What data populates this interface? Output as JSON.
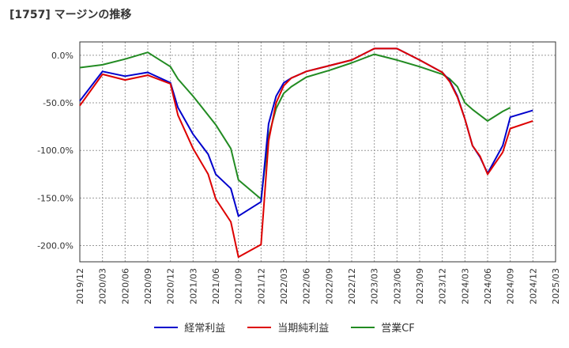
{
  "title": "[1757]  マージンの推移",
  "chart_data": {
    "type": "line",
    "title": "[1757]  マージンの推移",
    "x": [
      "2019/12",
      "2020/03",
      "2020/06",
      "2020/09",
      "2020/12",
      "2021/03",
      "2021/06",
      "2021/09",
      "2021/12",
      "2022/03",
      "2022/06",
      "2022/09",
      "2022/12",
      "2023/03",
      "2023/06",
      "2023/09",
      "2023/12",
      "2024/03",
      "2024/06",
      "2024/09",
      "2024/12",
      "2025/03"
    ],
    "ylim": [
      -217,
      14
    ],
    "yticks": [
      0,
      -50,
      -100,
      -150,
      -200
    ],
    "ytick_labels": [
      "0.0%",
      "-50.0%",
      "-100.0%",
      "-150.0%",
      "-200.0%"
    ],
    "grid": true,
    "legend_position": "bottom",
    "series": [
      {
        "name": "経常利益",
        "color": "#0000cc",
        "points": [
          [
            "2019/12",
            -48
          ],
          [
            "2020/03",
            -17
          ],
          [
            "2020/06",
            -22
          ],
          [
            "2020/09",
            -18
          ],
          [
            "2020/12",
            -29
          ],
          [
            "2021/01",
            -55
          ],
          [
            "2021/03",
            -83
          ],
          [
            "2021/05",
            -104
          ],
          [
            "2021/06",
            -125
          ],
          [
            "2021/08",
            -140
          ],
          [
            "2021/09",
            -169
          ],
          [
            "2021/12",
            -154
          ],
          [
            "2022/01",
            -72
          ],
          [
            "2022/02",
            -43
          ],
          [
            "2022/03",
            -29
          ],
          [
            "2022/04",
            -24
          ],
          [
            "2022/06",
            -17
          ],
          [
            "2022/09",
            -11
          ],
          [
            "2022/12",
            -5
          ],
          [
            "2023/03",
            7
          ],
          [
            "2023/06",
            7
          ],
          [
            "2023/09",
            -5
          ],
          [
            "2023/12",
            -18
          ],
          [
            "2024/01",
            -27
          ],
          [
            "2024/02",
            -43
          ],
          [
            "2024/03",
            -67
          ],
          [
            "2024/04",
            -95
          ],
          [
            "2024/05",
            -107
          ],
          [
            "2024/06",
            -124
          ],
          [
            "2024/08",
            -95
          ],
          [
            "2024/09",
            -65
          ],
          [
            "2024/12",
            -58
          ]
        ]
      },
      {
        "name": "当期純利益",
        "color": "#dd0000",
        "points": [
          [
            "2019/12",
            -53
          ],
          [
            "2020/03",
            -20
          ],
          [
            "2020/06",
            -26
          ],
          [
            "2020/09",
            -21
          ],
          [
            "2020/12",
            -30
          ],
          [
            "2021/01",
            -63
          ],
          [
            "2021/03",
            -98
          ],
          [
            "2021/05",
            -125
          ],
          [
            "2021/06",
            -151
          ],
          [
            "2021/08",
            -175
          ],
          [
            "2021/09",
            -212
          ],
          [
            "2021/12",
            -199
          ],
          [
            "2022/01",
            -90
          ],
          [
            "2022/02",
            -50
          ],
          [
            "2022/03",
            -32
          ],
          [
            "2022/04",
            -24
          ],
          [
            "2022/06",
            -17
          ],
          [
            "2022/09",
            -11
          ],
          [
            "2022/12",
            -5
          ],
          [
            "2023/03",
            7
          ],
          [
            "2023/06",
            7
          ],
          [
            "2023/09",
            -5
          ],
          [
            "2023/12",
            -18
          ],
          [
            "2024/01",
            -28
          ],
          [
            "2024/02",
            -44
          ],
          [
            "2024/03",
            -67
          ],
          [
            "2024/04",
            -95
          ],
          [
            "2024/05",
            -106
          ],
          [
            "2024/06",
            -125
          ],
          [
            "2024/08",
            -102
          ],
          [
            "2024/09",
            -77
          ],
          [
            "2024/12",
            -69
          ]
        ]
      },
      {
        "name": "営業CF",
        "color": "#228b22",
        "points": [
          [
            "2019/12",
            -13
          ],
          [
            "2020/03",
            -10
          ],
          [
            "2020/06",
            -4
          ],
          [
            "2020/09",
            3
          ],
          [
            "2020/10",
            -2
          ],
          [
            "2020/12",
            -12
          ],
          [
            "2021/01",
            -25
          ],
          [
            "2021/03",
            -43
          ],
          [
            "2021/04",
            -53
          ],
          [
            "2021/06",
            -73
          ],
          [
            "2021/08",
            -98
          ],
          [
            "2021/09",
            -131
          ],
          [
            "2021/12",
            -151
          ],
          [
            "2022/01",
            -85
          ],
          [
            "2022/02",
            -56
          ],
          [
            "2022/03",
            -40
          ],
          [
            "2022/04",
            -33
          ],
          [
            "2022/06",
            -23
          ],
          [
            "2022/09",
            -16
          ],
          [
            "2022/12",
            -8
          ],
          [
            "2023/03",
            1
          ],
          [
            "2023/06",
            -5
          ],
          [
            "2023/09",
            -12
          ],
          [
            "2023/12",
            -20
          ],
          [
            "2024/01",
            -25
          ],
          [
            "2024/02",
            -33
          ],
          [
            "2024/03",
            -50
          ],
          [
            "2024/04",
            -57
          ],
          [
            "2024/06",
            -69
          ],
          [
            "2024/08",
            -59
          ],
          [
            "2024/09",
            -55
          ]
        ]
      }
    ]
  }
}
